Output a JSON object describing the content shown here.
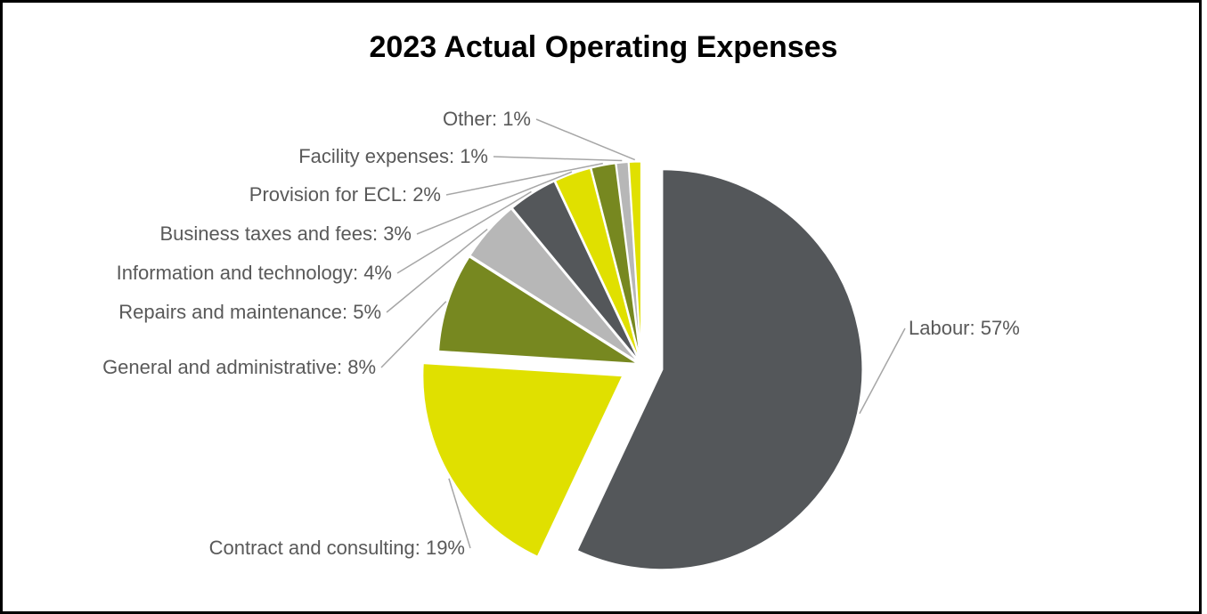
{
  "chart_data": {
    "type": "pie",
    "title": "2023 Actual Operating Expenses",
    "slices": [
      {
        "name": "Labour",
        "value": 57,
        "label": "Labour: 57%",
        "color": "#54575a",
        "exploded": true
      },
      {
        "name": "Contract and consulting",
        "value": 19,
        "label": "Contract and consulting: 19%",
        "color": "#e0e000",
        "exploded": true
      },
      {
        "name": "General and administrative",
        "value": 8,
        "label": "General and administrative: 8%",
        "color": "#778820",
        "exploded": false
      },
      {
        "name": "Repairs and maintenance",
        "value": 5,
        "label": "Repairs and maintenance: 5%",
        "color": "#b7b7b7",
        "exploded": false
      },
      {
        "name": "Information and technology",
        "value": 4,
        "label": "Information and technology: 4%",
        "color": "#54575a",
        "exploded": false
      },
      {
        "name": "Business taxes and fees",
        "value": 3,
        "label": "Business taxes and fees: 3%",
        "color": "#e0e000",
        "exploded": false
      },
      {
        "name": "Provision for ECL",
        "value": 2,
        "label": "Provision for ECL: 2%",
        "color": "#778820",
        "exploded": false
      },
      {
        "name": "Facility expenses",
        "value": 1,
        "label": "Facility expenses: 1%",
        "color": "#b7b7b7",
        "exploded": false
      },
      {
        "name": "Other",
        "value": 1,
        "label": "Other: 1%",
        "color": "#e0e000",
        "exploded": false
      }
    ],
    "legend": "none",
    "data_labels": "outside with leader lines"
  }
}
